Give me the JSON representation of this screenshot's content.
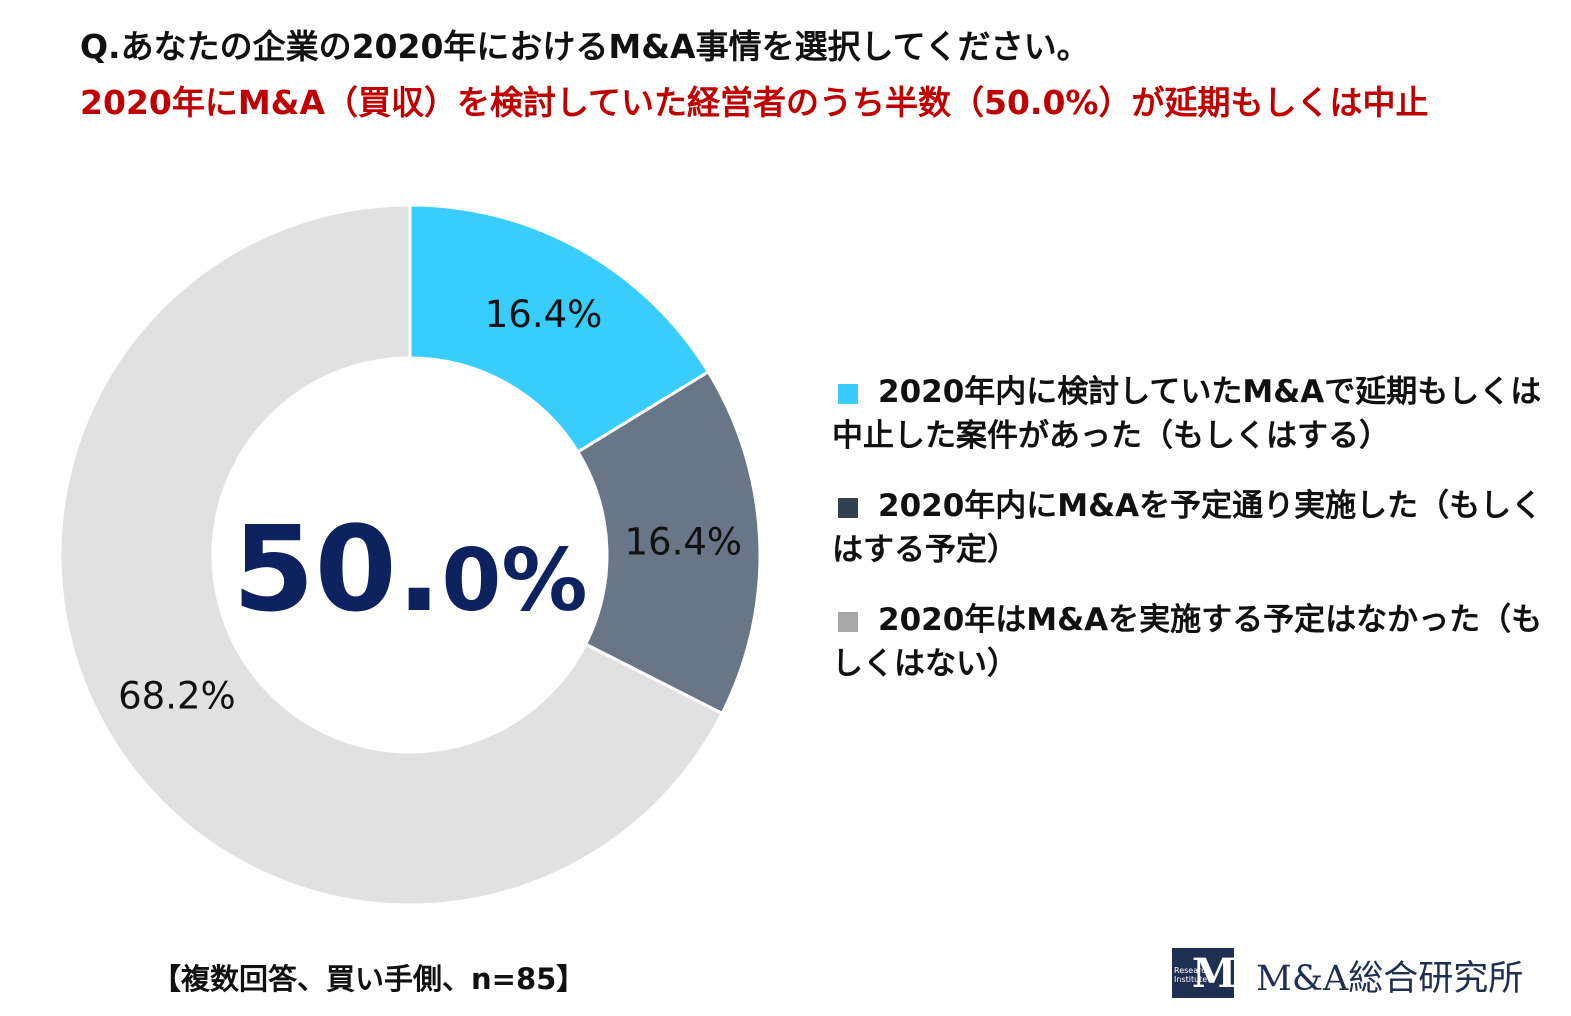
{
  "header": {
    "title": "Q.あなたの企業の2020年におけるM&A事情を選択してください。",
    "subtitle": "2020年にM&A（買収）を検討していた経営者のうち半数（50.0%）が延期もしくは中止"
  },
  "chart_data": {
    "type": "pie",
    "subtype": "donut",
    "center_label": {
      "main": "50.",
      "small": "0%"
    },
    "slices": [
      {
        "label": "2020年内に検討していたM&Aで延期もしくは中止した案件があった（もしくはする）",
        "value": 16.4,
        "value_label": "16.4%",
        "color": "#38cdfc",
        "legend_color": "#38cdfc"
      },
      {
        "label": "2020年内にM&Aを予定通り実施した（もしくはする予定）",
        "value": 16.4,
        "value_label": "16.4%",
        "color": "#697687",
        "legend_color": "#33404f"
      },
      {
        "label": "2020年はM&Aを実施する予定はなかった（もしくはない）",
        "value": 68.2,
        "value_label": "68.2%",
        "color": "#e1e1e1",
        "legend_color": "#a8a8a8"
      }
    ],
    "legend_position": "right"
  },
  "footnote": "【複数回答、買い手側、n=85】",
  "logo": {
    "mark_letter": "M",
    "mark_tiny": "Research Institute",
    "text": "M&A総合研究所"
  },
  "colors": {
    "title": "#111111",
    "subtitle": "#c00000",
    "center": "#0e2260"
  }
}
